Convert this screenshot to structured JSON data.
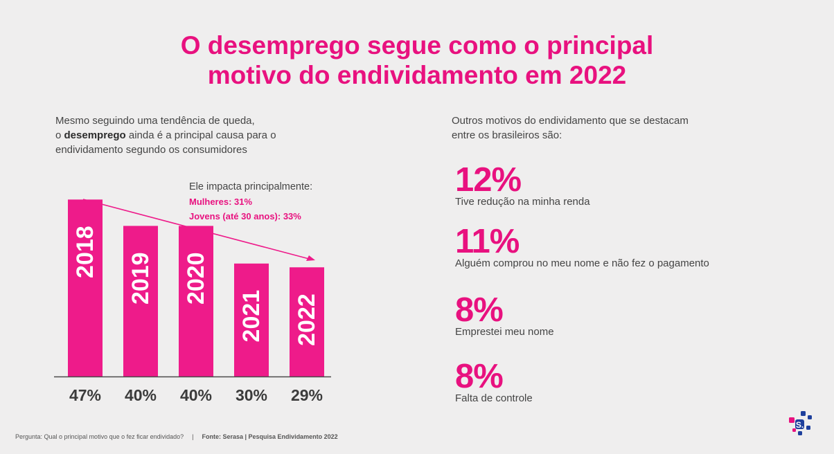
{
  "title": {
    "line1": "O desemprego segue como o principal",
    "line2": "motivo do endividamento em 2022"
  },
  "intro": {
    "line1": "Mesmo seguindo uma tendência de queda,",
    "line2_pre": "o ",
    "line2_bold": "desemprego",
    "line2_post": " ainda é a principal causa para o",
    "line3": "endividamento segundo os consumidores"
  },
  "impact": {
    "heading": "Ele impacta principalmente:",
    "women": "Mulheres: 31%",
    "youth": "Jovens (até 30 anos): 33%"
  },
  "chart_data": {
    "type": "bar",
    "categories": [
      "2018",
      "2019",
      "2020",
      "2021",
      "2022"
    ],
    "values": [
      47,
      40,
      40,
      30,
      29
    ],
    "value_labels": [
      "47%",
      "40%",
      "40%",
      "30%",
      "29%"
    ],
    "ylim": [
      0,
      50
    ],
    "bar_color": "#ee1b8a",
    "trend_arrow": "downward",
    "grid": false
  },
  "right": {
    "intro_line1": "Outros motivos do endividamento que se destacam",
    "intro_line2": "entre os brasileiros são:",
    "stats": [
      {
        "pct": "12%",
        "label": "Tive redução na minha renda"
      },
      {
        "pct": "11%",
        "label": "Alguém comprou no meu nome e não fez o pagamento"
      },
      {
        "pct": "8%",
        "label": "Emprestei meu nome"
      },
      {
        "pct": "8%",
        "label": "Falta de controle"
      }
    ]
  },
  "footer": {
    "question": "Pergunta: Qual o principal motivo que o fez ficar endividado?",
    "separator": "|",
    "source": "Fonte: Serasa | Pesquisa Endividamento 2022"
  },
  "colors": {
    "accent": "#e8117f",
    "background": "#efeeee",
    "logo_blue": "#1e3f9c",
    "logo_pink": "#e8117f"
  },
  "icons": {
    "logo": "serasa-logo-icon"
  }
}
